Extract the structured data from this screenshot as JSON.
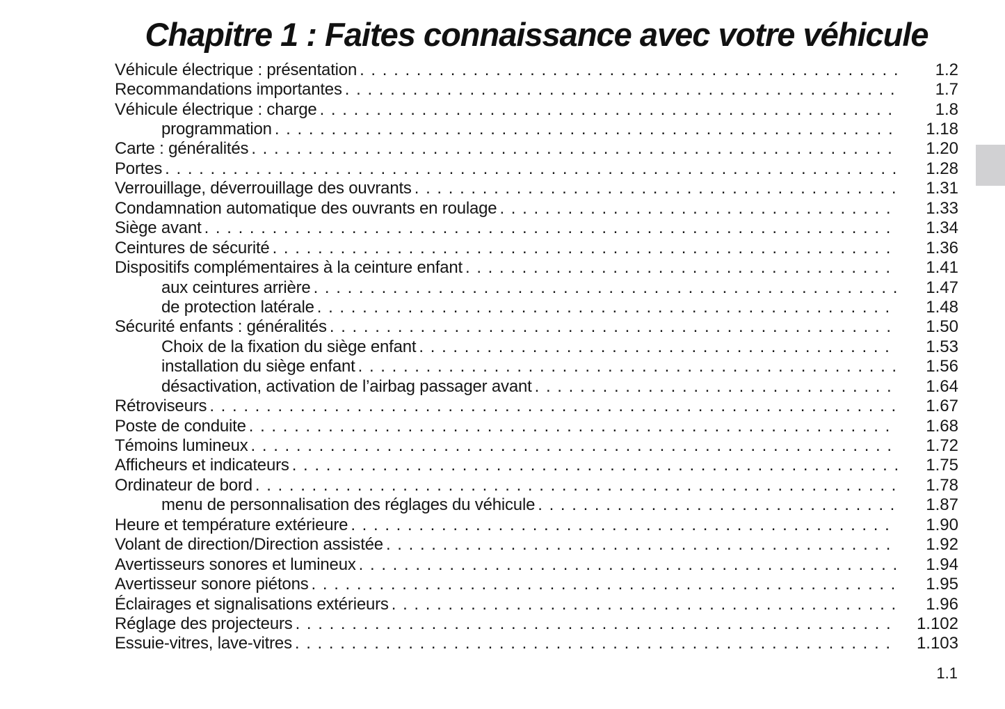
{
  "page": {
    "title": "Chapitre 1 : Faites connaissance avec votre véhicule",
    "footer_page_number": "1.1"
  },
  "colors": {
    "chapter_tab": "#d1d1d3",
    "text": "#161616",
    "background": "#ffffff"
  },
  "toc": {
    "entries": [
      {
        "label": "Véhicule électrique : présentation",
        "page": "1.2",
        "indent": 0
      },
      {
        "label": "Recommandations importantes",
        "page": "1.7",
        "indent": 0
      },
      {
        "label": "Véhicule électrique : charge",
        "page": "1.8",
        "indent": 0
      },
      {
        "label": "programmation",
        "page": "1.18",
        "indent": 1
      },
      {
        "label": "Carte : généralités",
        "page": "1.20",
        "indent": 0
      },
      {
        "label": "Portes",
        "page": "1.28",
        "indent": 0
      },
      {
        "label": "Verrouillage, déverrouillage des ouvrants",
        "page": "1.31",
        "indent": 0
      },
      {
        "label": "Condamnation automatique des ouvrants en roulage",
        "page": "1.33",
        "indent": 0
      },
      {
        "label": "Siège avant",
        "page": "1.34",
        "indent": 0
      },
      {
        "label": "Ceintures de sécurité",
        "page": "1.36",
        "indent": 0
      },
      {
        "label": "Dispositifs complémentaires à la ceinture enfant",
        "page": "1.41",
        "indent": 0
      },
      {
        "label": "aux ceintures arrière",
        "page": "1.47",
        "indent": 1
      },
      {
        "label": "de protection latérale",
        "page": "1.48",
        "indent": 1
      },
      {
        "label": "Sécurité enfants : généralités",
        "page": "1.50",
        "indent": 0
      },
      {
        "label": "Choix de la fixation du siège enfant",
        "page": "1.53",
        "indent": 1
      },
      {
        "label": "installation du siège enfant",
        "page": "1.56",
        "indent": 1
      },
      {
        "label": "désactivation, activation de l’airbag passager avant",
        "page": "1.64",
        "indent": 1
      },
      {
        "label": "Rétroviseurs",
        "page": "1.67",
        "indent": 0
      },
      {
        "label": "Poste de conduite",
        "page": "1.68",
        "indent": 0
      },
      {
        "label": "Témoins lumineux",
        "page": "1.72",
        "indent": 0
      },
      {
        "label": "Afficheurs et indicateurs",
        "page": "1.75",
        "indent": 0
      },
      {
        "label": "Ordinateur de bord",
        "page": "1.78",
        "indent": 0
      },
      {
        "label": "menu de personnalisation des réglages du véhicule",
        "page": "1.87",
        "indent": 1
      },
      {
        "label": "Heure et température extérieure",
        "page": "1.90",
        "indent": 0
      },
      {
        "label": "Volant de direction/Direction assistée",
        "page": "1.92",
        "indent": 0
      },
      {
        "label": "Avertisseurs sonores et lumineux",
        "page": "1.94",
        "indent": 0
      },
      {
        "label": "Avertisseur sonore piétons",
        "page": "1.95",
        "indent": 0
      },
      {
        "label": "Éclairages et signalisations extérieurs",
        "page": "1.96",
        "indent": 0
      },
      {
        "label": "Réglage des projecteurs",
        "page": "1.102",
        "indent": 0
      },
      {
        "label": "Essuie-vitres, lave-vitres",
        "page": "1.103",
        "indent": 0
      }
    ]
  }
}
